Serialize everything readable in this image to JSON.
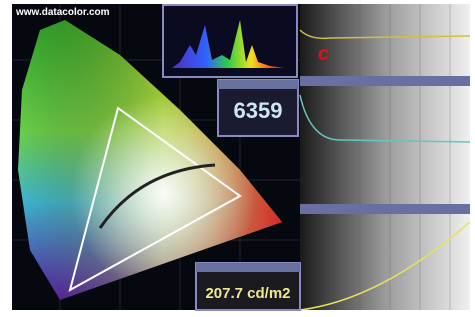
{
  "header": {
    "url": "www.datacolor.com"
  },
  "logo": {
    "text": "c"
  },
  "panels": {
    "color_temperature": {
      "value": "6359"
    },
    "luminance": {
      "value": "207.7 cd/m2"
    }
  }
}
